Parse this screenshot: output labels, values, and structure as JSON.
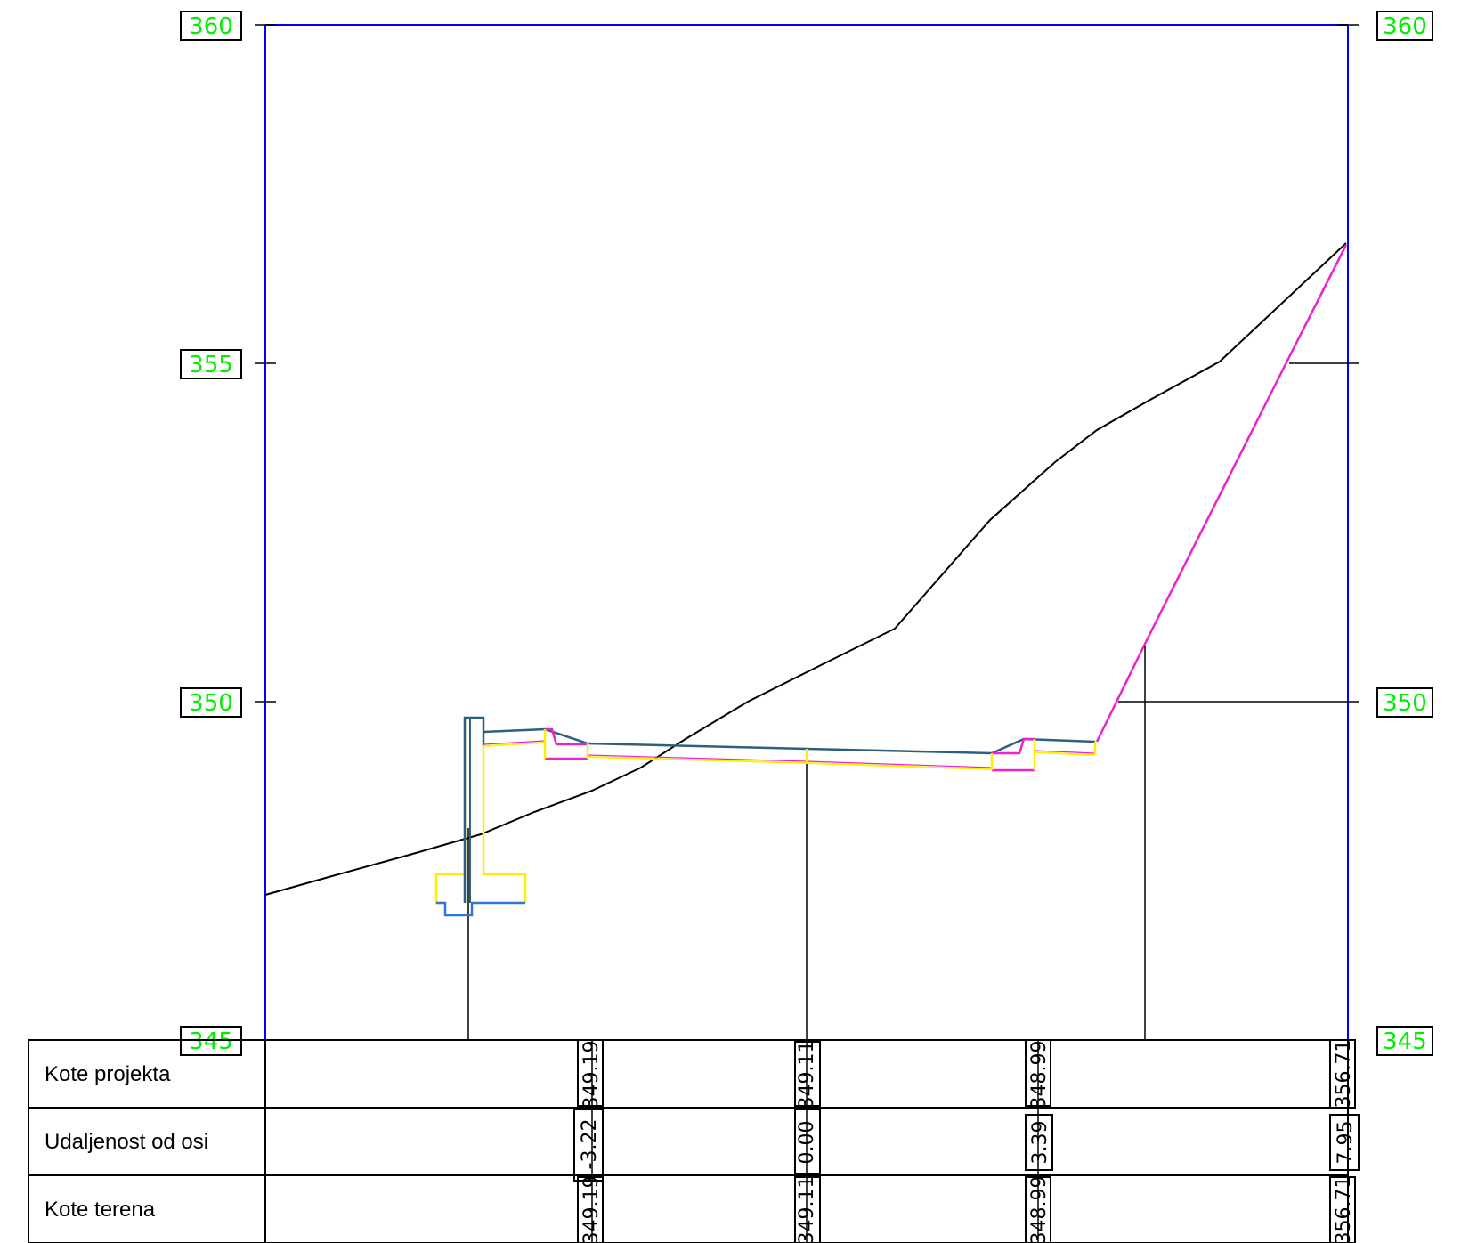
{
  "axis": {
    "labels": [
      "360",
      "355",
      "350",
      "345"
    ],
    "right_labels": [
      "360",
      "350",
      "345"
    ]
  },
  "table": {
    "rows": [
      "Kote projekta",
      "Udaljenost od osi",
      "Kote terena"
    ],
    "columns": [
      {
        "kote_projekta": "349.19",
        "udaljenost": "-3.22",
        "kote_terena": "349.19"
      },
      {
        "kote_projekta": "349.11",
        "udaljenost": "0.00",
        "kote_terena": "349.11"
      },
      {
        "kote_projekta": "348.99",
        "udaljenost": "3.39",
        "kote_terena": "348.99"
      },
      {
        "kote_projekta": "356.71",
        "udaljenost": "7.95",
        "kote_terena": "356.71"
      }
    ]
  },
  "colors": {
    "frame": "#0000ff",
    "elevation_label": "#00ee00",
    "terrain": "#000000",
    "pavement": "#2f5f7f",
    "slope": "#ee22cc",
    "layer": "#ffee00",
    "footing": "#3377cc"
  }
}
